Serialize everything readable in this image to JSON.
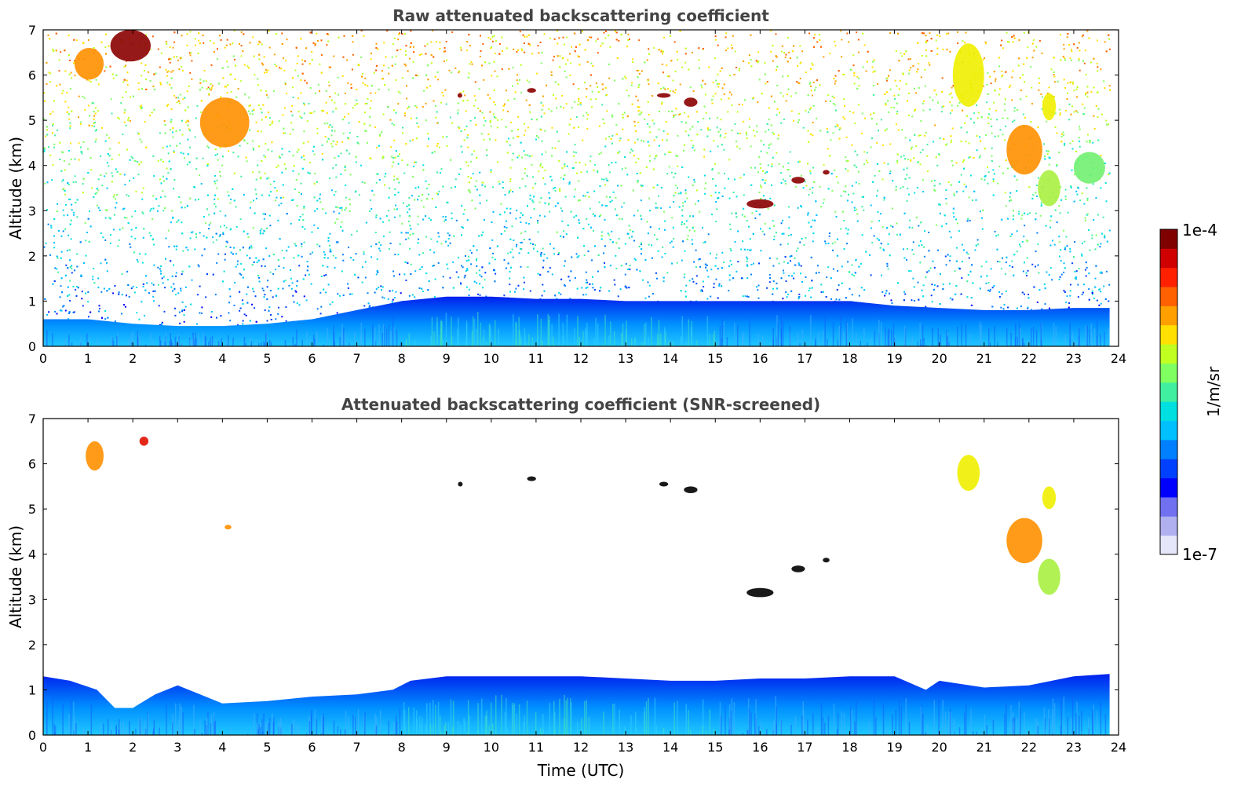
{
  "chart_data": [
    {
      "type": "heatmap",
      "title": "Raw attenuated backscattering coefficient",
      "xlabel": "",
      "ylabel": "Altitude (km)",
      "xlim": [
        0,
        24
      ],
      "ylim": [
        0,
        7
      ],
      "x_ticks": [
        "0",
        "1",
        "2",
        "3",
        "4",
        "5",
        "6",
        "7",
        "8",
        "9",
        "10",
        "11",
        "12",
        "13",
        "14",
        "15",
        "16",
        "17",
        "18",
        "19",
        "20",
        "21",
        "22",
        "23",
        "24"
      ],
      "y_ticks": [
        "0",
        "1",
        "2",
        "3",
        "4",
        "5",
        "6",
        "7"
      ],
      "data_extent_x": [
        0,
        23.8
      ],
      "colorscale": "jet, logarithmic",
      "noise_background": "speckled noise increasing with altitude (blue near surface, green-yellow-orange aloft)",
      "boundary_layer_top_km": [
        [
          0,
          0.6
        ],
        [
          1,
          0.6
        ],
        [
          2,
          0.5
        ],
        [
          3,
          0.45
        ],
        [
          4,
          0.45
        ],
        [
          5,
          0.5
        ],
        [
          6,
          0.6
        ],
        [
          7,
          0.8
        ],
        [
          8,
          1.0
        ],
        [
          9,
          1.1
        ],
        [
          10,
          1.1
        ],
        [
          11,
          1.05
        ],
        [
          12,
          1.05
        ],
        [
          13,
          1.0
        ],
        [
          14,
          1.0
        ],
        [
          15,
          1.0
        ],
        [
          16,
          1.0
        ],
        [
          17,
          1.0
        ],
        [
          18,
          1.0
        ],
        [
          19,
          0.9
        ],
        [
          20,
          0.85
        ],
        [
          21,
          0.8
        ],
        [
          22,
          0.8
        ],
        [
          23,
          0.85
        ],
        [
          23.8,
          0.85
        ]
      ],
      "features": [
        {
          "t_start": 0.7,
          "t_end": 1.35,
          "alt_bottom_km": 5.9,
          "alt_top_km": 6.6,
          "level": "orange"
        },
        {
          "t_start": 1.5,
          "t_end": 2.4,
          "alt_bottom_km": 6.3,
          "alt_top_km": 7.0,
          "level": "dark-red"
        },
        {
          "t_start": 3.5,
          "t_end": 4.6,
          "alt_bottom_km": 4.4,
          "alt_top_km": 5.5,
          "level": "orange"
        },
        {
          "t_start": 9.25,
          "t_end": 9.35,
          "alt_bottom_km": 5.5,
          "alt_top_km": 5.6,
          "level": "dark-red"
        },
        {
          "t_start": 10.8,
          "t_end": 11.0,
          "alt_bottom_km": 5.62,
          "alt_top_km": 5.7,
          "level": "dark-red"
        },
        {
          "t_start": 13.7,
          "t_end": 14.0,
          "alt_bottom_km": 5.5,
          "alt_top_km": 5.6,
          "level": "dark-red"
        },
        {
          "t_start": 14.3,
          "t_end": 14.6,
          "alt_bottom_km": 5.3,
          "alt_top_km": 5.5,
          "level": "dark-red"
        },
        {
          "t_start": 15.7,
          "t_end": 16.3,
          "alt_bottom_km": 3.05,
          "alt_top_km": 3.25,
          "level": "dark-red"
        },
        {
          "t_start": 16.7,
          "t_end": 17.0,
          "alt_bottom_km": 3.6,
          "alt_top_km": 3.75,
          "level": "dark-red"
        },
        {
          "t_start": 17.4,
          "t_end": 17.55,
          "alt_bottom_km": 3.8,
          "alt_top_km": 3.9,
          "level": "dark-red"
        },
        {
          "t_start": 20.3,
          "t_end": 21.0,
          "alt_bottom_km": 5.3,
          "alt_top_km": 6.7,
          "level": "yellow"
        },
        {
          "t_start": 21.5,
          "t_end": 22.3,
          "alt_bottom_km": 3.8,
          "alt_top_km": 4.9,
          "level": "orange"
        },
        {
          "t_start": 22.2,
          "t_end": 22.7,
          "alt_bottom_km": 3.1,
          "alt_top_km": 3.9,
          "level": "yellow-green"
        },
        {
          "t_start": 22.3,
          "t_end": 22.6,
          "alt_bottom_km": 5.0,
          "alt_top_km": 5.6,
          "level": "yellow"
        },
        {
          "t_start": 23.0,
          "t_end": 23.7,
          "alt_bottom_km": 3.6,
          "alt_top_km": 4.3,
          "level": "green"
        }
      ]
    },
    {
      "type": "heatmap",
      "title": "Attenuated backscattering coefficient (SNR-screened)",
      "xlabel": "Time (UTC)",
      "ylabel": "Altitude (km)",
      "xlim": [
        0,
        24
      ],
      "ylim": [
        0,
        7
      ],
      "x_ticks": [
        "0",
        "1",
        "2",
        "3",
        "4",
        "5",
        "6",
        "7",
        "8",
        "9",
        "10",
        "11",
        "12",
        "13",
        "14",
        "15",
        "16",
        "17",
        "18",
        "19",
        "20",
        "21",
        "22",
        "23",
        "24"
      ],
      "y_ticks": [
        "0",
        "1",
        "2",
        "3",
        "4",
        "5",
        "6",
        "7"
      ],
      "data_extent_x": [
        0,
        23.8
      ],
      "colorscale": "jet, logarithmic",
      "noise_background": "removed (white)",
      "boundary_layer_top_km": [
        [
          0,
          1.3
        ],
        [
          0.6,
          1.2
        ],
        [
          1.2,
          1.0
        ],
        [
          1.6,
          0.6
        ],
        [
          2.0,
          0.6
        ],
        [
          2.5,
          0.9
        ],
        [
          3.0,
          1.1
        ],
        [
          4.0,
          0.7
        ],
        [
          5.0,
          0.75
        ],
        [
          6.0,
          0.85
        ],
        [
          7.0,
          0.9
        ],
        [
          7.8,
          1.0
        ],
        [
          8.2,
          1.2
        ],
        [
          9.0,
          1.3
        ],
        [
          10.0,
          1.3
        ],
        [
          11.0,
          1.3
        ],
        [
          12.0,
          1.3
        ],
        [
          13.0,
          1.25
        ],
        [
          14.0,
          1.2
        ],
        [
          15.0,
          1.2
        ],
        [
          16.0,
          1.25
        ],
        [
          17.0,
          1.25
        ],
        [
          18.0,
          1.3
        ],
        [
          19.0,
          1.3
        ],
        [
          19.7,
          1.0
        ],
        [
          20.0,
          1.2
        ],
        [
          21.0,
          1.05
        ],
        [
          22.0,
          1.1
        ],
        [
          23.0,
          1.3
        ],
        [
          23.8,
          1.35
        ]
      ],
      "features": [
        {
          "t_start": 0.95,
          "t_end": 1.35,
          "alt_bottom_km": 5.85,
          "alt_top_km": 6.5,
          "level": "orange"
        },
        {
          "t_start": 2.15,
          "t_end": 2.35,
          "alt_bottom_km": 6.4,
          "alt_top_km": 6.6,
          "level": "red"
        },
        {
          "t_start": 4.05,
          "t_end": 4.2,
          "alt_bottom_km": 4.55,
          "alt_top_km": 4.65,
          "level": "orange"
        },
        {
          "t_start": 9.28,
          "t_end": 9.34,
          "alt_bottom_km": 5.52,
          "alt_top_km": 5.58,
          "level": "black"
        },
        {
          "t_start": 10.8,
          "t_end": 11.0,
          "alt_bottom_km": 5.64,
          "alt_top_km": 5.7,
          "level": "black"
        },
        {
          "t_start": 13.75,
          "t_end": 13.95,
          "alt_bottom_km": 5.5,
          "alt_top_km": 5.6,
          "level": "black"
        },
        {
          "t_start": 14.3,
          "t_end": 14.6,
          "alt_bottom_km": 5.35,
          "alt_top_km": 5.5,
          "level": "black"
        },
        {
          "t_start": 15.7,
          "t_end": 16.3,
          "alt_bottom_km": 3.05,
          "alt_top_km": 3.25,
          "level": "black"
        },
        {
          "t_start": 16.7,
          "t_end": 17.0,
          "alt_bottom_km": 3.6,
          "alt_top_km": 3.75,
          "level": "black"
        },
        {
          "t_start": 17.4,
          "t_end": 17.55,
          "alt_bottom_km": 3.82,
          "alt_top_km": 3.92,
          "level": "black"
        },
        {
          "t_start": 20.4,
          "t_end": 20.9,
          "alt_bottom_km": 5.4,
          "alt_top_km": 6.2,
          "level": "yellow"
        },
        {
          "t_start": 21.5,
          "t_end": 22.3,
          "alt_bottom_km": 3.8,
          "alt_top_km": 4.8,
          "level": "orange"
        },
        {
          "t_start": 22.2,
          "t_end": 22.7,
          "alt_bottom_km": 3.1,
          "alt_top_km": 3.9,
          "level": "yellow-green"
        },
        {
          "t_start": 22.3,
          "t_end": 22.6,
          "alt_bottom_km": 5.0,
          "alt_top_km": 5.5,
          "level": "yellow"
        }
      ]
    }
  ],
  "colorbar": {
    "label": "1/m/sr",
    "max_label": "1e-4",
    "min_label": "1e-7",
    "scale": "log",
    "range": [
      1e-07,
      0.0001
    ],
    "colors": [
      "#e6e6fa",
      "#b0b0f0",
      "#7070f0",
      "#0000ff",
      "#0040ff",
      "#0080ff",
      "#00c0ff",
      "#00e0e0",
      "#40f0a0",
      "#80ff60",
      "#c0ff20",
      "#ffe000",
      "#ffa000",
      "#ff6000",
      "#ff2000",
      "#d00000",
      "#800000"
    ]
  }
}
